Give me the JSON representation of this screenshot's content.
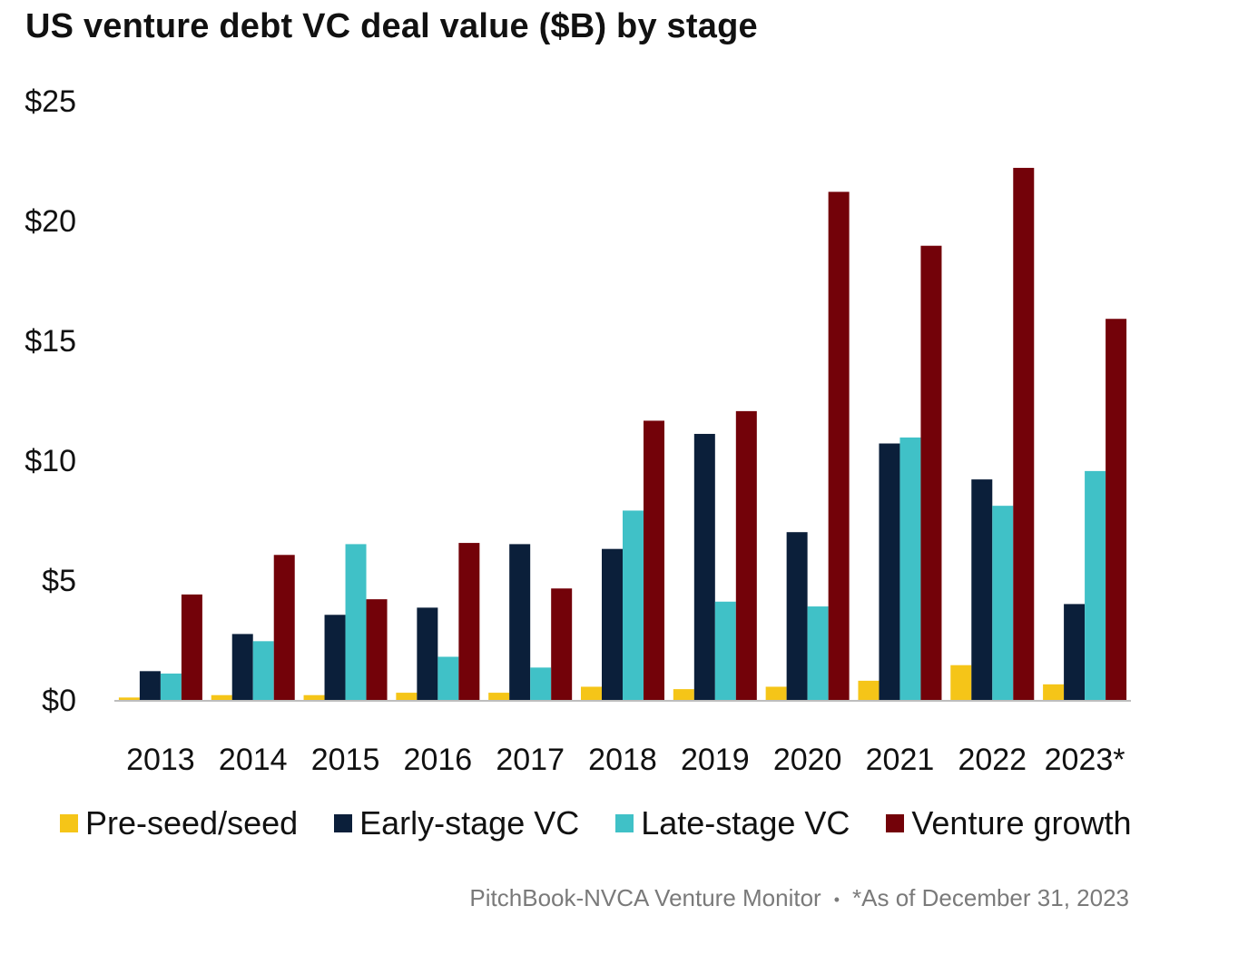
{
  "chart_data": {
    "type": "bar",
    "title": "US venture debt VC deal value ($B) by stage",
    "xlabel": "",
    "ylabel": "",
    "ylim": [
      0,
      25
    ],
    "yticks": [
      0,
      5,
      10,
      15,
      20,
      25
    ],
    "ytick_labels": [
      "$0",
      "$5",
      "$10",
      "$15",
      "$20",
      "$25"
    ],
    "categories": [
      "2013",
      "2014",
      "2015",
      "2016",
      "2017",
      "2018",
      "2019",
      "2020",
      "2021",
      "2022",
      "2023*"
    ],
    "series": [
      {
        "name": "Pre-seed/seed",
        "color": "#f5c518",
        "values": [
          0.1,
          0.2,
          0.2,
          0.3,
          0.3,
          0.55,
          0.45,
          0.55,
          0.8,
          1.45,
          0.65
        ]
      },
      {
        "name": "Early-stage VC",
        "color": "#0b1f3a",
        "values": [
          1.2,
          2.75,
          3.55,
          3.85,
          6.5,
          6.3,
          11.1,
          7.0,
          10.7,
          9.2,
          4.0
        ]
      },
      {
        "name": "Late-stage VC",
        "color": "#40c1c7",
        "values": [
          1.1,
          2.45,
          6.5,
          1.8,
          1.35,
          7.9,
          4.1,
          3.9,
          10.95,
          8.1,
          9.55
        ]
      },
      {
        "name": "Venture growth",
        "color": "#730209",
        "values": [
          4.4,
          6.05,
          4.2,
          6.55,
          4.65,
          11.65,
          12.05,
          21.2,
          18.95,
          22.2,
          15.9
        ]
      }
    ],
    "grid": false,
    "legend_position": "bottom"
  },
  "footer": {
    "source": "PitchBook-NVCA Venture Monitor",
    "separator": "•",
    "note": "*As of December 31, 2023"
  }
}
